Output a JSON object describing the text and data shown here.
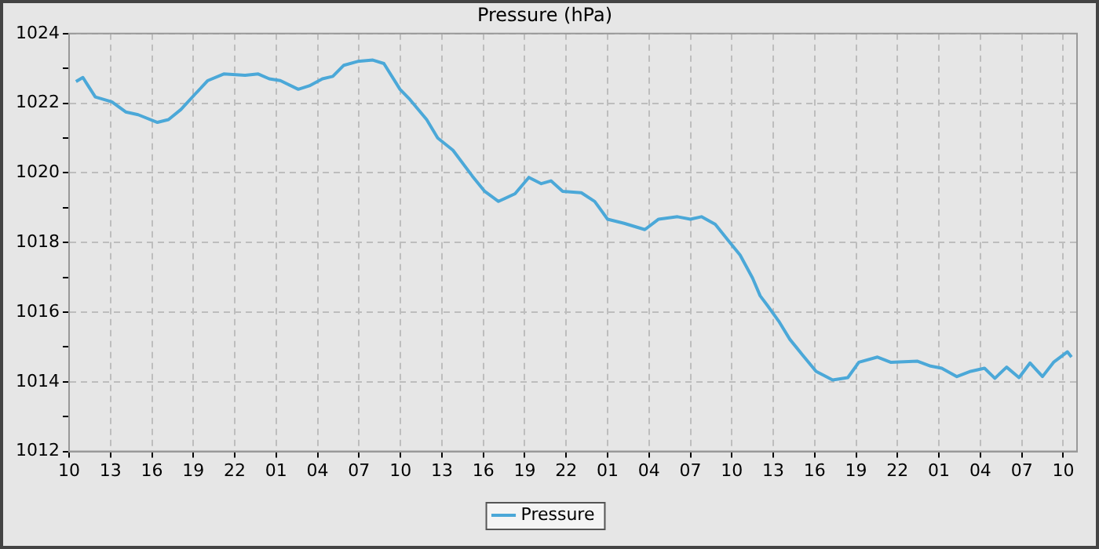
{
  "chart_data": {
    "type": "line",
    "title": "Pressure (hPa)",
    "x": [
      "--01-01T10:30",
      "--01-01T11:00",
      "--01-01T11:18",
      "--01-01T11:54",
      "--01-01T13:06",
      "--01-01T14:06",
      "--01-01T15:00",
      "--01-01T16:24",
      "--01-01T17:12",
      "--01-01T18:06",
      "--01-01T19:06",
      "--01-01T20:03",
      "--01-01T21:12",
      "--01-01T22:45",
      "--01-01T23:42",
      "--01-02T00:30",
      "--01-02T01:18",
      "--01-02T02:36",
      "--01-02T03:24",
      "--01-02T04:21",
      "--01-02T05:06",
      "--01-02T05:54",
      "--01-02T06:54",
      "--01-02T08:00",
      "--01-02T08:48",
      "--01-02T09:58",
      "--01-02T10:42",
      "--01-02T11:54",
      "--01-02T12:42",
      "--01-02T13:48",
      "--01-02T15:12",
      "--01-02T16:06",
      "--01-02T17:06",
      "--01-02T18:18",
      "--01-02T19:18",
      "--01-02T20:12",
      "--01-02T20:54",
      "--01-02T21:45",
      "--01-02T23:06",
      "--01-03T00:04",
      "--01-03T01:00",
      "--01-03T02:12",
      "--01-03T03:42",
      "--01-03T04:42",
      "--01-03T06:04",
      "--01-03T07:00",
      "--01-03T07:48",
      "--01-03T08:48",
      "--01-03T09:42",
      "--01-03T10:36",
      "--01-03T11:30",
      "--01-03T12:03",
      "--01-03T12:36",
      "--01-03T13:24",
      "--01-03T14:12",
      "--01-03T15:06",
      "--01-03T16:06",
      "--01-03T17:18",
      "--01-03T18:24",
      "--01-03T19:12",
      "--01-03T20:33",
      "--01-03T21:30",
      "--01-03T23:27",
      "--01-04T00:24",
      "--01-04T01:12",
      "--01-04T02:18",
      "--01-04T03:18",
      "--01-04T04:18",
      "--01-04T05:03",
      "--01-04T05:54",
      "--01-04T06:48",
      "--01-04T07:36",
      "--01-04T08:30",
      "--01-04T09:18",
      "--01-04T10:18",
      "--01-04T10:36"
    ],
    "series": [
      {
        "name": "Pressure",
        "color": "#4ba8d8",
        "values": [
          1022.62,
          1022.74,
          1022.55,
          1022.18,
          1022.04,
          1021.75,
          1021.67,
          1021.45,
          1021.53,
          1021.82,
          1022.25,
          1022.65,
          1022.84,
          1022.8,
          1022.84,
          1022.7,
          1022.65,
          1022.4,
          1022.5,
          1022.7,
          1022.77,
          1023.09,
          1023.2,
          1023.24,
          1023.14,
          1022.4,
          1022.1,
          1021.53,
          1021.0,
          1020.65,
          1019.91,
          1019.47,
          1019.18,
          1019.4,
          1019.87,
          1019.69,
          1019.77,
          1019.47,
          1019.43,
          1019.18,
          1018.67,
          1018.55,
          1018.37,
          1018.67,
          1018.74,
          1018.67,
          1018.74,
          1018.52,
          1018.08,
          1017.64,
          1016.98,
          1016.47,
          1016.18,
          1015.74,
          1015.22,
          1014.78,
          1014.3,
          1014.05,
          1014.12,
          1014.56,
          1014.71,
          1014.56,
          1014.59,
          1014.45,
          1014.39,
          1014.15,
          1014.3,
          1014.39,
          1014.1,
          1014.42,
          1014.12,
          1014.54,
          1014.15,
          1014.56,
          1014.86,
          1014.71
        ]
      }
    ],
    "xlim": [
      "--01-01T10:00",
      "--01-04T11:00"
    ],
    "xticks": [
      {
        "value": "--01-01T10:00",
        "label": "10"
      },
      {
        "value": "--01-01T13:00",
        "label": "13"
      },
      {
        "value": "--01-01T16:00",
        "label": "16"
      },
      {
        "value": "--01-01T19:00",
        "label": "19"
      },
      {
        "value": "--01-01T22:00",
        "label": "22"
      },
      {
        "value": "--01-02T01:00",
        "label": "01"
      },
      {
        "value": "--01-02T04:00",
        "label": "04"
      },
      {
        "value": "--01-02T07:00",
        "label": "07"
      },
      {
        "value": "--01-02T10:00",
        "label": "10"
      },
      {
        "value": "--01-02T13:00",
        "label": "13"
      },
      {
        "value": "--01-02T16:00",
        "label": "16"
      },
      {
        "value": "--01-02T19:00",
        "label": "19"
      },
      {
        "value": "--01-02T22:00",
        "label": "22"
      },
      {
        "value": "--01-03T01:00",
        "label": "01"
      },
      {
        "value": "--01-03T04:00",
        "label": "04"
      },
      {
        "value": "--01-03T07:00",
        "label": "07"
      },
      {
        "value": "--01-03T10:00",
        "label": "10"
      },
      {
        "value": "--01-03T13:00",
        "label": "13"
      },
      {
        "value": "--01-03T16:00",
        "label": "16"
      },
      {
        "value": "--01-03T19:00",
        "label": "19"
      },
      {
        "value": "--01-03T22:00",
        "label": "22"
      },
      {
        "value": "--01-04T01:00",
        "label": "01"
      },
      {
        "value": "--01-04T04:00",
        "label": "04"
      },
      {
        "value": "--01-04T07:00",
        "label": "07"
      },
      {
        "value": "--01-04T10:00",
        "label": "10"
      }
    ],
    "ylim": [
      1012,
      1024
    ],
    "yticks": [
      1012,
      {
        "value": 1013,
        "label": null
      },
      1014,
      {
        "value": 1015,
        "label": null
      },
      1016,
      {
        "value": 1017,
        "label": null
      },
      1018,
      {
        "value": 1019,
        "label": null
      },
      1020,
      {
        "value": 1021,
        "label": null
      },
      1022,
      {
        "value": 1023,
        "label": null
      },
      1024
    ],
    "grid": true,
    "legend": "bottom",
    "marker": "none",
    "line_style": "solid"
  }
}
